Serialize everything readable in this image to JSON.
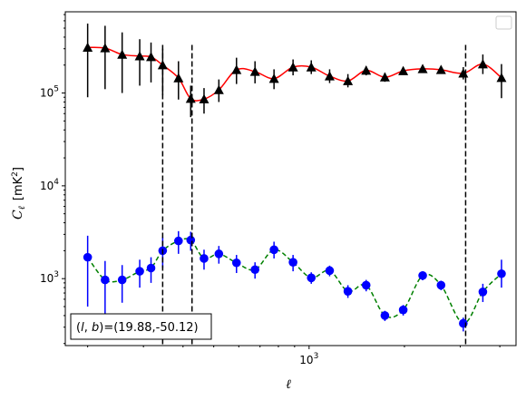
{
  "chart_data": {
    "type": "scatter",
    "title": "",
    "xlabel": "ℓ",
    "ylabel": "C_ℓ [mK²]",
    "ylabel_parts": {
      "symbol": "C",
      "subscript": "ℓ",
      "unit": "[mK",
      "unit_sup": "2",
      "unit_close": "]"
    },
    "xscale": "log",
    "yscale": "log",
    "xlim": [
      170,
      4500
    ],
    "ylim": [
      190,
      750000
    ],
    "x_tick_labels": [
      {
        "value": 1000,
        "base": "10",
        "exp": "3"
      }
    ],
    "y_tick_labels": [
      {
        "value": 1000,
        "base": "10",
        "exp": "3"
      },
      {
        "value": 10000,
        "base": "10",
        "exp": "4"
      },
      {
        "value": 100000,
        "base": "10",
        "exp": "5"
      }
    ],
    "grid": false,
    "legend": {
      "placement": "upper-right",
      "entries": []
    },
    "annotation": "(l, b)=(19.88,-50.12)",
    "annotation_parts": {
      "l": "l",
      "b": "b",
      "values": "=(19.88,-50.12)"
    },
    "vlines": [
      345,
      427,
      3120
    ],
    "series": [
      {
        "marker": "triangle",
        "marker_color": "#000000",
        "line_color": "#ff0000",
        "line_style": "solid",
        "error_color": "#000000",
        "points": [
          {
            "x": 200,
            "y": 310000,
            "lo": 90000,
            "hi": 560000
          },
          {
            "x": 227,
            "y": 305000,
            "lo": 110000,
            "hi": 530000
          },
          {
            "x": 257,
            "y": 260000,
            "lo": 100000,
            "hi": 450000
          },
          {
            "x": 292,
            "y": 250000,
            "lo": 120000,
            "hi": 380000
          },
          {
            "x": 317,
            "y": 245000,
            "lo": 130000,
            "hi": 350000
          },
          {
            "x": 345,
            "y": 200000,
            "lo": 95000,
            "hi": 300000
          },
          {
            "x": 387,
            "y": 145000,
            "lo": 85000,
            "hi": 220000
          },
          {
            "x": 423,
            "y": 87000,
            "lo": 55000,
            "hi": 120000
          },
          {
            "x": 466,
            "y": 86000,
            "lo": 60000,
            "hi": 113000
          },
          {
            "x": 519,
            "y": 108000,
            "lo": 80000,
            "hi": 140000
          },
          {
            "x": 590,
            "y": 178000,
            "lo": 125000,
            "hi": 240000
          },
          {
            "x": 675,
            "y": 170000,
            "lo": 127000,
            "hi": 220000
          },
          {
            "x": 775,
            "y": 143000,
            "lo": 110000,
            "hi": 180000
          },
          {
            "x": 890,
            "y": 190000,
            "lo": 155000,
            "hi": 230000
          },
          {
            "x": 1016,
            "y": 190000,
            "lo": 160000,
            "hi": 225000
          },
          {
            "x": 1161,
            "y": 152000,
            "lo": 128000,
            "hi": 180000
          },
          {
            "x": 1326,
            "y": 135000,
            "lo": 115000,
            "hi": 160000
          },
          {
            "x": 1514,
            "y": 175000,
            "lo": 155000,
            "hi": 195000
          },
          {
            "x": 1735,
            "y": 148000,
            "lo": 132000,
            "hi": 165000
          },
          {
            "x": 1982,
            "y": 173000,
            "lo": 157000,
            "hi": 190000
          },
          {
            "x": 2283,
            "y": 182000,
            "lo": 165000,
            "hi": 200000
          },
          {
            "x": 2609,
            "y": 178000,
            "lo": 162000,
            "hi": 196000
          },
          {
            "x": 3067,
            "y": 163000,
            "lo": 140000,
            "hi": 190000
          },
          {
            "x": 3536,
            "y": 205000,
            "lo": 160000,
            "hi": 260000
          },
          {
            "x": 4049,
            "y": 146000,
            "lo": 88000,
            "hi": 205000
          }
        ]
      },
      {
        "marker": "circle",
        "marker_color": "#0000ff",
        "line_color": "#008000",
        "line_style": "dashed",
        "error_color": "#0000ff",
        "points": [
          {
            "x": 200,
            "y": 1700,
            "lo": 500,
            "hi": 2900
          },
          {
            "x": 227,
            "y": 970,
            "lo": 400,
            "hi": 1550
          },
          {
            "x": 257,
            "y": 970,
            "lo": 550,
            "hi": 1400
          },
          {
            "x": 292,
            "y": 1200,
            "lo": 800,
            "hi": 1600
          },
          {
            "x": 317,
            "y": 1300,
            "lo": 900,
            "hi": 1700
          },
          {
            "x": 345,
            "y": 2000,
            "lo": 1300,
            "hi": 2800
          },
          {
            "x": 387,
            "y": 2550,
            "lo": 1850,
            "hi": 3250
          },
          {
            "x": 423,
            "y": 2600,
            "lo": 2000,
            "hi": 3200
          },
          {
            "x": 466,
            "y": 1650,
            "lo": 1250,
            "hi": 2050
          },
          {
            "x": 519,
            "y": 1850,
            "lo": 1450,
            "hi": 2250
          },
          {
            "x": 590,
            "y": 1480,
            "lo": 1150,
            "hi": 1800
          },
          {
            "x": 675,
            "y": 1250,
            "lo": 1000,
            "hi": 1500
          },
          {
            "x": 775,
            "y": 2050,
            "lo": 1650,
            "hi": 2500
          },
          {
            "x": 890,
            "y": 1500,
            "lo": 1200,
            "hi": 1800
          },
          {
            "x": 1016,
            "y": 1020,
            "lo": 880,
            "hi": 1170
          },
          {
            "x": 1161,
            "y": 1220,
            "lo": 1060,
            "hi": 1380
          },
          {
            "x": 1326,
            "y": 730,
            "lo": 620,
            "hi": 850
          },
          {
            "x": 1514,
            "y": 850,
            "lo": 730,
            "hi": 970
          },
          {
            "x": 1735,
            "y": 400,
            "lo": 350,
            "hi": 450
          },
          {
            "x": 1982,
            "y": 460,
            "lo": 400,
            "hi": 520
          },
          {
            "x": 2283,
            "y": 1080,
            "lo": 960,
            "hi": 1200
          },
          {
            "x": 2609,
            "y": 850,
            "lo": 750,
            "hi": 950
          },
          {
            "x": 3067,
            "y": 330,
            "lo": 270,
            "hi": 380
          },
          {
            "x": 3536,
            "y": 720,
            "lo": 560,
            "hi": 880
          },
          {
            "x": 4049,
            "y": 1130,
            "lo": 800,
            "hi": 1600
          }
        ]
      }
    ]
  }
}
